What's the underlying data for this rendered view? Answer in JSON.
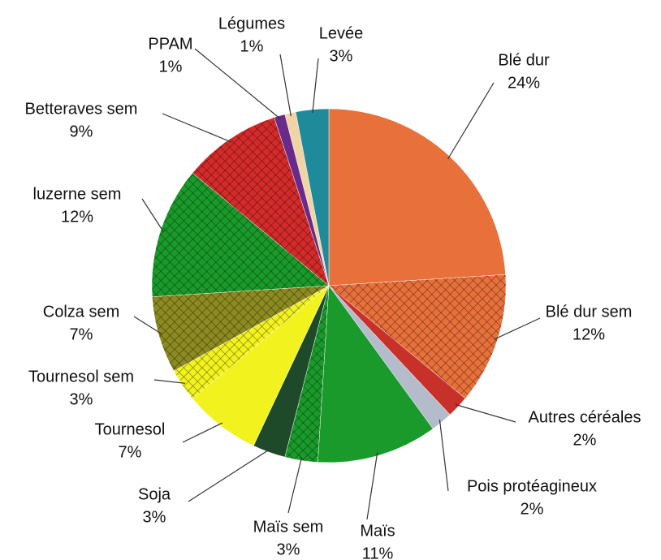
{
  "chart_data": {
    "type": "pie",
    "categories": [
      "Blé dur",
      "Blé dur sem",
      "Autres céréales",
      "Pois protéagineux",
      "Maïs",
      "Maïs sem",
      "Soja",
      "Tournesol",
      "Tournesol sem",
      "Colza sem",
      "luzerne sem",
      "Betteraves sem",
      "PPAM",
      "Légumes",
      "Levée"
    ],
    "values": [
      24,
      12,
      2,
      2,
      11,
      3,
      3,
      7,
      3,
      7,
      12,
      9,
      1,
      1,
      3
    ],
    "value_labels": [
      "24%",
      "12%",
      "2%",
      "2%",
      "11%",
      "3%",
      "3%",
      "7%",
      "3%",
      "7%",
      "12%",
      "9%",
      "1%",
      "1%",
      "3%"
    ],
    "colors": [
      "#e8703a",
      "#e8703a",
      "#c8302a",
      "#b4bccb",
      "#1a9a2a",
      "#1a9a2a",
      "#1f4a2a",
      "#f2f21e",
      "#f2f21e",
      "#8c8a20",
      "#1a9a2a",
      "#d42a2a",
      "#6a2a8a",
      "#f0d4a4",
      "#1f8a9a"
    ],
    "hatched": [
      false,
      true,
      false,
      false,
      false,
      true,
      false,
      false,
      true,
      true,
      true,
      true,
      false,
      false,
      false
    ]
  }
}
